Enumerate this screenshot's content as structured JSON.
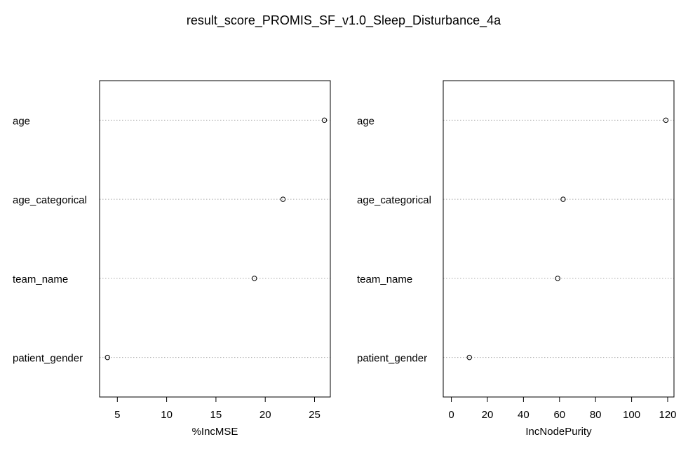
{
  "title": "result_score_PROMIS_SF_v1.0_Sleep_Disturbance_4a",
  "chart_data": [
    {
      "type": "scatter",
      "title": "",
      "xlabel": "%IncMSE",
      "ylabel": "",
      "categories": [
        "age",
        "age_categorical",
        "team_name",
        "patient_gender"
      ],
      "values": [
        26.0,
        21.8,
        18.9,
        4.0
      ],
      "xlim": [
        3.2,
        26.6
      ],
      "xticks": [
        5,
        10,
        15,
        20,
        25
      ],
      "grid": "dotted horizontal per category"
    },
    {
      "type": "scatter",
      "title": "",
      "xlabel": "IncNodePurity",
      "ylabel": "",
      "categories": [
        "age",
        "age_categorical",
        "team_name",
        "patient_gender"
      ],
      "values": [
        119,
        62,
        59,
        10
      ],
      "xlim": [
        -4.5,
        123.5
      ],
      "xticks": [
        0,
        20,
        40,
        60,
        80,
        100,
        120
      ],
      "grid": "dotted horizontal per category"
    }
  ]
}
